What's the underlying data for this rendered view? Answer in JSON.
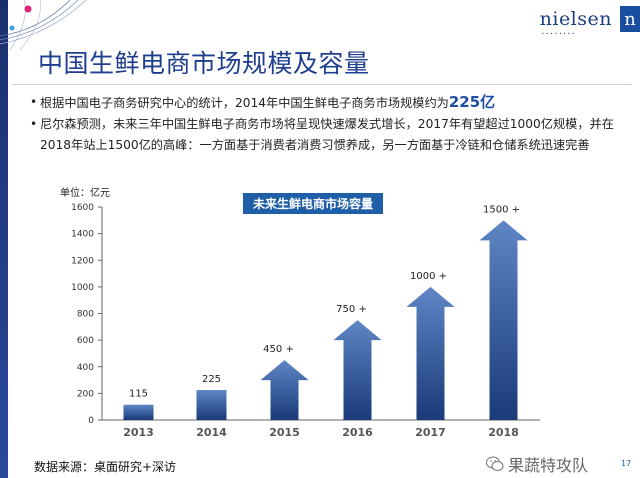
{
  "brand": {
    "logo_text": "nielsen",
    "logo_mark": "n"
  },
  "title": "中国生鲜电商市场规模及容量",
  "bullets": {
    "b1_pre": "根据中国电子商务研究中心的统计，2014年中国生鲜电子商务市场规模约为",
    "b1_highlight": "225亿",
    "b2": "尼尔森预测，未来三年中国生鲜电子商务市场将呈现快速爆发式增长，2017年有望超过1000亿规模，并在2018年站上1500亿的高峰：一方面基于消费者消费习惯养成，另一方面基于冷链和仓储系统迅速完善"
  },
  "colors": {
    "title": "#1e3f8f",
    "bar_dark": "#1a3a78",
    "bar_light": "#5f86c6",
    "chart_title_bg": "#1f5fa8",
    "highlight": "#1f4ea3"
  },
  "chart_data": {
    "type": "bar",
    "title": "未来生鲜电商市场容量",
    "unit_label": "单位：亿元",
    "categories": [
      "2013",
      "2014",
      "2015",
      "2016",
      "2017",
      "2018"
    ],
    "values": [
      115,
      225,
      450,
      750,
      1000,
      1500
    ],
    "data_labels": [
      "115",
      "225",
      "450 +",
      "750 +",
      "1000 +",
      "1500 +"
    ],
    "bar_style": [
      "rect",
      "rect",
      "arrow",
      "arrow",
      "arrow",
      "arrow"
    ],
    "ylim": [
      0,
      1600
    ],
    "yticks": [
      0,
      200,
      400,
      600,
      800,
      1000,
      1200,
      1400,
      1600
    ],
    "grid": false
  },
  "source": "数据来源：桌面研究+深访",
  "watermark": "果蔬特攻队",
  "page_number": "17"
}
